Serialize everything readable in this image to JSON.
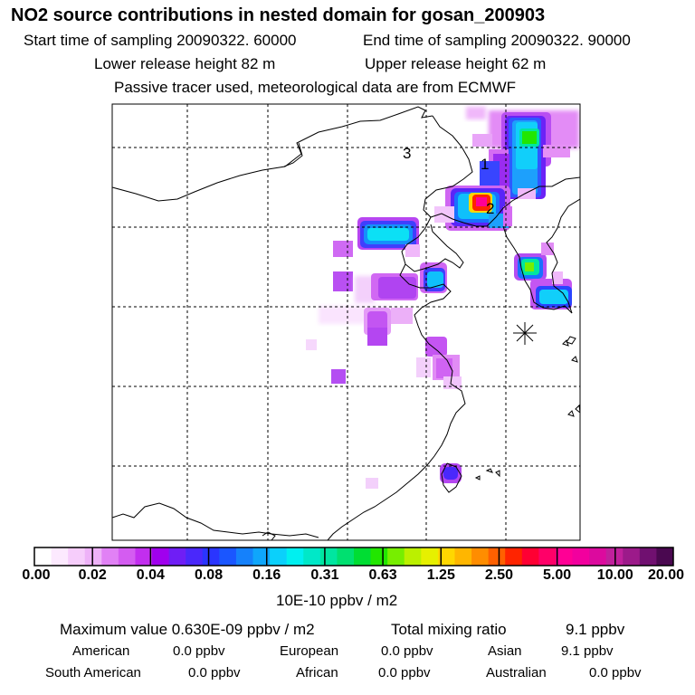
{
  "header": {
    "title": "NO2 source contributions in nested domain for gosan_200903",
    "start_label": "Start time of sampling 20090322. 60000",
    "end_label": "End time of sampling 20090322. 90000",
    "lower_label": "Lower release height   82 m",
    "upper_label": "Upper release height   62 m",
    "tracer_label": "Passive tracer used, meteorological data are from ECMWF"
  },
  "chart_data": {
    "type": "heatmap",
    "title": "NO2 source contributions in nested domain for gosan_200903",
    "grid": true,
    "map_labels": [
      "1",
      "2",
      "3"
    ],
    "receptor_marker": "asterisk",
    "colorbar": {
      "units": "10E-10 ppbv / m2",
      "tick_labels": [
        "0.00",
        "0.02",
        "0.04",
        "0.08",
        "0.16",
        "0.31",
        "0.63",
        "1.25",
        "2.50",
        "5.00",
        "10.00",
        "20.00"
      ],
      "colors": [
        "#ffffff",
        "#fce9fe",
        "#f6cdfb",
        "#eeb2f8",
        "#e181f5",
        "#d45cf1",
        "#c22eef",
        "#a000ee",
        "#6f1ef5",
        "#4a28fb",
        "#2a35ff",
        "#1a56ff",
        "#1581fb",
        "#0fa6fb",
        "#0bd0fb",
        "#00f0f0",
        "#00e8c8",
        "#00e6a0",
        "#00e070",
        "#00dd33",
        "#22e600",
        "#77ee00",
        "#bbf000",
        "#e6f000",
        "#ffd700",
        "#ffb600",
        "#ff8d00",
        "#ff6000",
        "#ff2400",
        "#ff0033",
        "#ff0068",
        "#ff0095",
        "#f2009e",
        "#dc0a9e",
        "#c0209c",
        "#9c1a8a",
        "#701070",
        "#4a0850"
      ]
    },
    "plumes": [
      {
        "id": "korea-north",
        "level": 0.45
      },
      {
        "id": "korea-center",
        "level": 0.95
      },
      {
        "id": "north-china-plain",
        "level": 0.35
      },
      {
        "id": "shandong",
        "level": 0.3
      },
      {
        "id": "south-korea",
        "level": 0.5
      },
      {
        "id": "taiwan",
        "level": 0.25
      }
    ]
  },
  "footer": {
    "max_label": "Maximum value  0.630E-09 ppbv / m2",
    "total_label": "Total mixing ratio",
    "total_value": "9.1 ppbv",
    "regions": {
      "american": {
        "name": "American",
        "value": "0.0 ppbv"
      },
      "european": {
        "name": "European",
        "value": "0.0 ppbv"
      },
      "asian": {
        "name": "Asian",
        "value": "9.1 ppbv"
      },
      "south_american": {
        "name": "South American",
        "value": "0.0 ppbv"
      },
      "african": {
        "name": "African",
        "value": "0.0 ppbv"
      },
      "australian": {
        "name": "Australian",
        "value": "0.0 ppbv"
      }
    }
  }
}
